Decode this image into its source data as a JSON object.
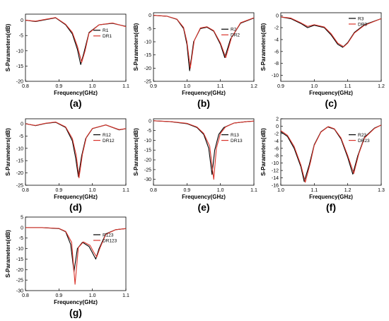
{
  "figure": {
    "colors": {
      "R": "#000000",
      "DR": "#d9342b"
    },
    "xlabel": "Frequency(GHz)",
    "ylabel": "S-Parameters(dB)"
  },
  "chart_data": [
    {
      "type": "line",
      "panel_label": "(a)",
      "xlabel": "Frequency(GHz)",
      "ylabel": "S-Parameters(dB)",
      "xlim": [
        0.8,
        1.1
      ],
      "ylim": [
        -20,
        2
      ],
      "xticks": [
        "0.8",
        "0.9",
        "1.0",
        "1.1"
      ],
      "yticks": [
        "0",
        "-5",
        "-10",
        "-15",
        "-20"
      ],
      "legend_position": "right",
      "series": [
        {
          "name": "R1",
          "x": [
            0.8,
            0.83,
            0.86,
            0.89,
            0.92,
            0.94,
            0.955,
            0.965,
            0.975,
            0.99,
            1.02,
            1.06,
            1.1
          ],
          "y": [
            0,
            -0.4,
            0.2,
            0.8,
            -1.5,
            -4.5,
            -9.5,
            -14.5,
            -10.5,
            -4,
            -1.5,
            -1,
            -2
          ]
        },
        {
          "name": "DR1",
          "x": [
            0.8,
            0.83,
            0.86,
            0.89,
            0.92,
            0.94,
            0.955,
            0.968,
            0.978,
            0.99,
            1.02,
            1.06,
            1.1
          ],
          "y": [
            0,
            -0.3,
            0.3,
            0.9,
            -1.3,
            -4,
            -8.5,
            -13.8,
            -10,
            -4.2,
            -1.5,
            -0.9,
            -2.1
          ]
        }
      ]
    },
    {
      "type": "line",
      "panel_label": "(b)",
      "xlabel": "Frequency(GHz)",
      "ylabel": "S-Parameters(dB)",
      "xlim": [
        0.9,
        1.2
      ],
      "ylim": [
        -25,
        1
      ],
      "xticks": [
        "0.9",
        "1.0",
        "1.1",
        "1.2"
      ],
      "yticks": [
        "0",
        "-5",
        "-10",
        "-15",
        "-20",
        "-25"
      ],
      "legend_position": "right",
      "series": [
        {
          "name": "R2",
          "x": [
            0.9,
            0.94,
            0.97,
            0.99,
            1.0,
            1.008,
            1.02,
            1.04,
            1.06,
            1.08,
            1.1,
            1.113,
            1.13,
            1.16,
            1.2
          ],
          "y": [
            0,
            -0.3,
            -1.5,
            -5,
            -11,
            -21,
            -10,
            -5,
            -4.5,
            -6,
            -11,
            -16,
            -9,
            -3,
            -1
          ]
        },
        {
          "name": "DR2",
          "x": [
            0.9,
            0.94,
            0.97,
            0.99,
            1.0,
            1.01,
            1.022,
            1.04,
            1.06,
            1.08,
            1.1,
            1.116,
            1.133,
            1.16,
            1.2
          ],
          "y": [
            0,
            -0.3,
            -1.4,
            -4.6,
            -10,
            -20,
            -9.5,
            -4.8,
            -4.3,
            -5.8,
            -10.5,
            -16,
            -8.5,
            -2.8,
            -0.9
          ]
        }
      ]
    },
    {
      "type": "line",
      "panel_label": "(c)",
      "xlabel": "Frequency(GHz)",
      "ylabel": "S-Parameters(dB)",
      "xlim": [
        0.9,
        1.2
      ],
      "ylim": [
        -11,
        0.5
      ],
      "xticks": [
        "0.9",
        "1.0",
        "1.1",
        "1.2"
      ],
      "yticks": [
        "0",
        "-2",
        "-4",
        "-6",
        "-8",
        "-10"
      ],
      "legend_position": "top-right",
      "series": [
        {
          "name": "R3",
          "x": [
            0.9,
            0.93,
            0.96,
            0.98,
            1.0,
            1.03,
            1.05,
            1.07,
            1.085,
            1.1,
            1.12,
            1.15,
            1.2
          ],
          "y": [
            -0.2,
            -0.5,
            -1.3,
            -2,
            -1.6,
            -2,
            -3.2,
            -4.8,
            -5.3,
            -4.5,
            -2.8,
            -1.5,
            -0.5
          ]
        },
        {
          "name": "DR3",
          "x": [
            0.9,
            0.93,
            0.96,
            0.98,
            1.0,
            1.03,
            1.05,
            1.07,
            1.088,
            1.1,
            1.12,
            1.15,
            1.2
          ],
          "y": [
            -0.2,
            -0.4,
            -1.2,
            -1.8,
            -1.5,
            -1.9,
            -3,
            -4.6,
            -5.2,
            -4.6,
            -2.9,
            -1.6,
            -0.5
          ]
        }
      ]
    },
    {
      "type": "line",
      "panel_label": "(d)",
      "xlabel": "Frequency(GHz)",
      "ylabel": "S-Parameters(dB)",
      "xlim": [
        0.8,
        1.1
      ],
      "ylim": [
        -25,
        2
      ],
      "xticks": [
        "0.8",
        "0.9",
        "1.0",
        "1.1"
      ],
      "yticks": [
        "0",
        "-5",
        "-10",
        "-15",
        "-20",
        "-25"
      ],
      "legend_position": "right",
      "series": [
        {
          "name": "R12",
          "x": [
            0.8,
            0.83,
            0.86,
            0.89,
            0.92,
            0.94,
            0.95,
            0.958,
            0.968,
            0.98,
            1.0,
            1.04,
            1.08,
            1.1
          ],
          "y": [
            0,
            -0.8,
            0.1,
            0.6,
            -1.5,
            -7,
            -14,
            -21.5,
            -13,
            -6,
            -2,
            -0.5,
            -2.5,
            -2
          ]
        },
        {
          "name": "DR12",
          "x": [
            0.8,
            0.83,
            0.86,
            0.89,
            0.92,
            0.94,
            0.952,
            0.96,
            0.97,
            0.982,
            1.0,
            1.04,
            1.08,
            1.1
          ],
          "y": [
            0,
            -0.7,
            0.2,
            0.7,
            -1.3,
            -6,
            -13,
            -22,
            -12.5,
            -5.5,
            -1.9,
            -0.5,
            -2.4,
            -2
          ]
        }
      ]
    },
    {
      "type": "line",
      "panel_label": "(e)",
      "xlabel": "Frequency(GHz)",
      "ylabel": "S-Parameters(dB)",
      "xlim": [
        0.8,
        1.1
      ],
      "ylim": [
        -33,
        1
      ],
      "xticks": [
        "0.8",
        "0.9",
        "1.0",
        "1.1"
      ],
      "yticks": [
        "0",
        "-5",
        "-10",
        "-15",
        "-20",
        "-25",
        "-30"
      ],
      "legend_position": "right",
      "series": [
        {
          "name": "R13",
          "x": [
            0.8,
            0.85,
            0.9,
            0.93,
            0.95,
            0.965,
            0.975,
            0.983,
            0.995,
            1.01,
            1.04,
            1.08,
            1.1
          ],
          "y": [
            0,
            -0.5,
            -1.5,
            -3.5,
            -7,
            -14,
            -27.5,
            -15,
            -7,
            -3.5,
            -1.2,
            -0.4,
            -0.2
          ]
        },
        {
          "name": "DR13",
          "x": [
            0.8,
            0.85,
            0.9,
            0.93,
            0.95,
            0.968,
            0.98,
            0.988,
            1.0,
            1.015,
            1.04,
            1.08,
            1.1
          ],
          "y": [
            0,
            -0.4,
            -1.3,
            -3.2,
            -6.5,
            -13,
            -30,
            -14,
            -6.5,
            -3.2,
            -1.2,
            -0.4,
            -0.2
          ]
        }
      ]
    },
    {
      "type": "line",
      "panel_label": "(f)",
      "xlabel": "Frequency(GHz)",
      "ylabel": "S-Parameters(dB)",
      "xlim": [
        1.0,
        1.3
      ],
      "ylim": [
        -16,
        2
      ],
      "xticks": [
        "1.0",
        "1.1",
        "1.2",
        "1.3"
      ],
      "yticks": [
        "2",
        "0",
        "-2",
        "-4",
        "-6",
        "-8",
        "-10",
        "-12",
        "-14",
        "-16"
      ],
      "legend_position": "right",
      "series": [
        {
          "name": "R23",
          "x": [
            1.0,
            1.02,
            1.04,
            1.06,
            1.07,
            1.085,
            1.1,
            1.12,
            1.14,
            1.16,
            1.18,
            1.2,
            1.215,
            1.23,
            1.25,
            1.28,
            1.3
          ],
          "y": [
            -1.5,
            -2.8,
            -6,
            -11,
            -15,
            -10.5,
            -5,
            -1.5,
            -0.2,
            -0.8,
            -3.5,
            -8.5,
            -13,
            -8,
            -3,
            -0.5,
            0.3
          ]
        },
        {
          "name": "DR23",
          "x": [
            1.0,
            1.02,
            1.04,
            1.06,
            1.073,
            1.088,
            1.1,
            1.12,
            1.142,
            1.16,
            1.18,
            1.2,
            1.218,
            1.233,
            1.25,
            1.28,
            1.3
          ],
          "y": [
            -1.2,
            -2.5,
            -5.5,
            -10.5,
            -15.2,
            -10,
            -5.2,
            -1.6,
            -0.1,
            -0.7,
            -3.2,
            -8,
            -12.8,
            -7.5,
            -3.2,
            -0.6,
            0.3
          ]
        }
      ]
    },
    {
      "type": "line",
      "panel_label": "(g)",
      "xlabel": "Frequency(GHz)",
      "ylabel": "S-Parameters(dB)",
      "xlim": [
        0.8,
        1.1
      ],
      "ylim": [
        -30,
        5
      ],
      "xticks": [
        "0.8",
        "0.9",
        "1.0",
        "1.1"
      ],
      "yticks": [
        "5",
        "0",
        "-5",
        "-10",
        "-15",
        "-20",
        "-25",
        "-30"
      ],
      "legend_position": "right",
      "series": [
        {
          "name": "R123",
          "x": [
            0.8,
            0.85,
            0.9,
            0.92,
            0.935,
            0.945,
            0.955,
            0.97,
            0.99,
            1.0,
            1.01,
            1.02,
            1.04,
            1.07,
            1.1
          ],
          "y": [
            0,
            0,
            -0.5,
            -2,
            -8,
            -21,
            -10,
            -7,
            -9,
            -12,
            -15,
            -10,
            -3,
            -1,
            -0.5
          ]
        },
        {
          "name": "DR123",
          "x": [
            0.8,
            0.85,
            0.9,
            0.92,
            0.938,
            0.948,
            0.958,
            0.973,
            0.993,
            1.003,
            1.013,
            1.023,
            1.04,
            1.07,
            1.1
          ],
          "y": [
            0,
            0,
            -0.4,
            -1.8,
            -7,
            -27,
            -9.5,
            -6.8,
            -8.5,
            -11.5,
            -14,
            -9.5,
            -3.2,
            -1,
            -0.5
          ]
        }
      ]
    }
  ]
}
